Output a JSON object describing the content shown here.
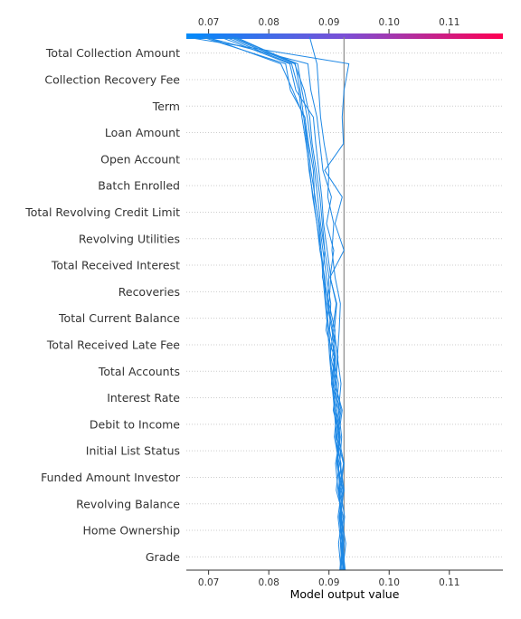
{
  "chart_data": {
    "type": "line",
    "subtype": "shap-decision-plot",
    "xlabel": "Model output value",
    "xlim": [
      0.0663,
      0.1189
    ],
    "xticks": [
      0.07,
      0.08,
      0.09,
      0.1,
      0.11
    ],
    "xtick_labels": [
      "0.07",
      "0.08",
      "0.09",
      "0.10",
      "0.11"
    ],
    "base_value": 0.0925,
    "grid": "dotted-horizontal",
    "colorbar": {
      "position": "top",
      "from": "#008bfb",
      "to": "#ff0052",
      "marker_color": "#1e88e5"
    },
    "features": [
      "Total Collection Amount",
      "Collection Recovery Fee",
      "Term",
      "Loan Amount",
      "Open Account",
      "Batch Enrolled",
      "Total Revolving Credit Limit",
      "Revolving Utilities",
      "Total Received Interest",
      "Recoveries",
      "Total Current Balance",
      "Total Received Late Fee",
      "Total Accounts",
      "Interest Rate",
      "Debit to Income",
      "Initial List Status",
      "Funded Amount Investor",
      "Revolving Balance",
      "Home Ownership",
      "Grade"
    ],
    "series": [
      {
        "values": [
          0.0921,
          0.0925,
          0.092,
          0.0924,
          0.0918,
          0.0921,
          0.0916,
          0.092,
          0.0914,
          0.0917,
          0.0919,
          0.091,
          0.0905,
          0.0908,
          0.0898,
          0.09,
          0.0892,
          0.0886,
          0.0883,
          0.088,
          0.0868
        ]
      },
      {
        "values": [
          0.0925,
          0.0921,
          0.0926,
          0.0919,
          0.0925,
          0.0916,
          0.0922,
          0.091,
          0.0914,
          0.0909,
          0.0913,
          0.0902,
          0.0908,
          0.0896,
          0.0904,
          0.089,
          0.0885,
          0.088,
          0.087,
          0.0865,
          0.0695
        ]
      },
      {
        "values": [
          0.0918,
          0.0922,
          0.0917,
          0.0923,
          0.0914,
          0.0919,
          0.0912,
          0.0916,
          0.0906,
          0.091,
          0.09,
          0.0903,
          0.0897,
          0.0891,
          0.0888,
          0.0883,
          0.0878,
          0.0874,
          0.0845,
          0.0835,
          0.072
        ]
      },
      {
        "values": [
          0.0923,
          0.0928,
          0.092,
          0.0917,
          0.0924,
          0.0913,
          0.0918,
          0.0908,
          0.0911,
          0.0905,
          0.0897,
          0.09,
          0.0893,
          0.0889,
          0.0885,
          0.0879,
          0.0872,
          0.0868,
          0.0859,
          0.0843,
          0.0735
        ]
      },
      {
        "values": [
          0.092,
          0.0916,
          0.0922,
          0.0915,
          0.0911,
          0.0918,
          0.0907,
          0.0913,
          0.0903,
          0.09,
          0.0895,
          0.0892,
          0.0887,
          0.0883,
          0.0877,
          0.087,
          0.0865,
          0.0858,
          0.084,
          0.082,
          0.0697
        ]
      },
      {
        "values": [
          0.0926,
          0.0923,
          0.0918,
          0.0925,
          0.0919,
          0.0914,
          0.092,
          0.0911,
          0.0915,
          0.0906,
          0.0912,
          0.0902,
          0.0925,
          0.091,
          0.0922,
          0.0893,
          0.0924,
          0.0922,
          0.0925,
          0.0933,
          0.0663
        ]
      },
      {
        "values": [
          0.0922,
          0.0919,
          0.0924,
          0.0912,
          0.0917,
          0.0909,
          0.0913,
          0.0904,
          0.0909,
          0.0895,
          0.09,
          0.0889,
          0.0893,
          0.0886,
          0.0881,
          0.0876,
          0.087,
          0.0864,
          0.0855,
          0.0848,
          0.074
        ]
      },
      {
        "values": [
          0.0919,
          0.0924,
          0.0921,
          0.0916,
          0.092,
          0.0911,
          0.0916,
          0.0906,
          0.091,
          0.0901,
          0.0903,
          0.0896,
          0.089,
          0.0884,
          0.0876,
          0.0874,
          0.0866,
          0.086,
          0.0836,
          0.0828,
          0.069
        ]
      },
      {
        "values": [
          0.0924,
          0.092,
          0.0915,
          0.0921,
          0.0913,
          0.0917,
          0.091,
          0.0907,
          0.0902,
          0.0907,
          0.0898,
          0.0893,
          0.0885,
          0.088,
          0.0873,
          0.0868,
          0.0862,
          0.0855,
          0.085,
          0.0838,
          0.0728
        ]
      },
      {
        "values": [
          0.0927,
          0.0922,
          0.0919,
          0.0918,
          0.0915,
          0.0912,
          0.0909,
          0.0905,
          0.0901,
          0.0898,
          0.0894,
          0.089,
          0.0887,
          0.088,
          0.0874,
          0.0867,
          0.0863,
          0.0858,
          0.0852,
          0.0844,
          0.0745
        ]
      }
    ]
  }
}
